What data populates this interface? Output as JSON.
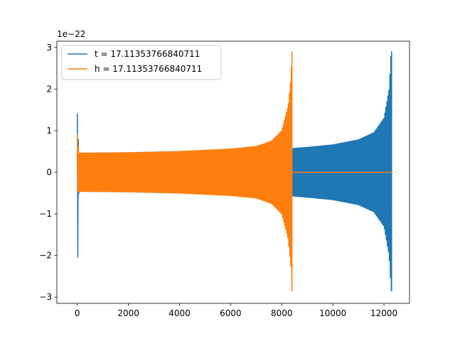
{
  "chart_data": {
    "type": "line",
    "title": "",
    "xlabel": "",
    "ylabel": "",
    "y_offset_label": "1e−22",
    "xlim": [
      -800,
      13000
    ],
    "ylim": [
      -3.15,
      3.15
    ],
    "x_ticks": [
      0,
      2000,
      4000,
      6000,
      8000,
      10000,
      12000
    ],
    "y_ticks": [
      -3,
      -2,
      -1,
      0,
      1,
      2,
      3
    ],
    "x_tick_labels": [
      "0",
      "2000",
      "4000",
      "6000",
      "8000",
      "10000",
      "12000"
    ],
    "y_tick_labels": [
      "−3",
      "−2",
      "−1",
      "0",
      "1",
      "2",
      "3"
    ],
    "legend_position": "top-left",
    "grid": false,
    "series": [
      {
        "name": "t = 17.11353766840711",
        "color": "#1f77b4",
        "style": "oscillating-chirp",
        "x_start": 0,
        "x_end": 12300,
        "envelope": [
          [
            0,
            1.4,
            -2.8
          ],
          [
            60,
            0.46,
            -0.46
          ],
          [
            2000,
            0.47,
            -0.47
          ],
          [
            4000,
            0.5,
            -0.5
          ],
          [
            6000,
            0.54,
            -0.54
          ],
          [
            8000,
            0.56,
            -0.56
          ],
          [
            8400,
            0.57,
            -0.57
          ],
          [
            9000,
            0.6,
            -0.6
          ],
          [
            10000,
            0.66,
            -0.66
          ],
          [
            11000,
            0.78,
            -0.78
          ],
          [
            11600,
            0.95,
            -0.95
          ],
          [
            12000,
            1.3,
            -1.3
          ],
          [
            12200,
            2.0,
            -2.0
          ],
          [
            12280,
            2.9,
            -2.85
          ]
        ]
      },
      {
        "name": "h = 17.11353766840711",
        "color": "#ff7f0e",
        "style": "oscillating-chirp",
        "x_start": 0,
        "x_end": 8400,
        "flat_until": 12300,
        "envelope": [
          [
            0,
            0.9,
            -0.5
          ],
          [
            60,
            0.46,
            -0.46
          ],
          [
            2000,
            0.47,
            -0.47
          ],
          [
            4000,
            0.5,
            -0.5
          ],
          [
            6000,
            0.56,
            -0.56
          ],
          [
            7000,
            0.62,
            -0.62
          ],
          [
            7600,
            0.75,
            -0.75
          ],
          [
            8000,
            1.0,
            -1.0
          ],
          [
            8250,
            1.6,
            -1.6
          ],
          [
            8360,
            2.3,
            -2.3
          ],
          [
            8400,
            2.9,
            -2.85
          ]
        ]
      }
    ]
  }
}
